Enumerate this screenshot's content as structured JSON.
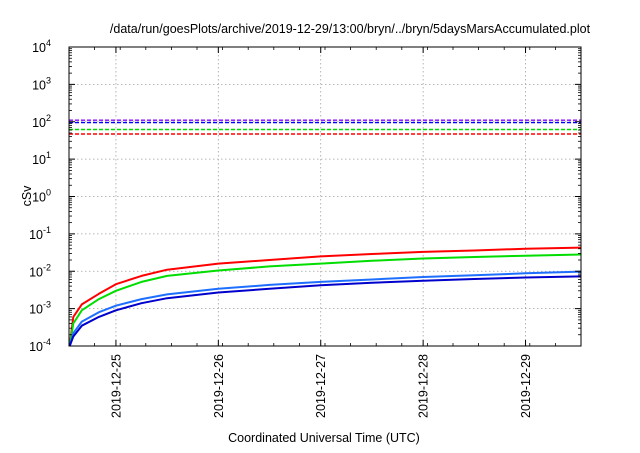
{
  "chart_data": {
    "type": "line",
    "title": "/data/run/goesPlots/archive/2019-12-29/13:00/bryn/../bryn/5daysMarsAccumulated.plot",
    "xlabel": "Coordinated Universal Time (UTC)",
    "ylabel": "cSv",
    "yscale": "log",
    "ylim": [
      0.0001,
      10000
    ],
    "y_ticks": [
      {
        "value": 0.0001,
        "base": "10",
        "exp": "-4"
      },
      {
        "value": 0.001,
        "base": "10",
        "exp": "-3"
      },
      {
        "value": 0.01,
        "base": "10",
        "exp": "-2"
      },
      {
        "value": 0.1,
        "base": "10",
        "exp": "-1"
      },
      {
        "value": 1,
        "base": "10",
        "exp": "0"
      },
      {
        "value": 10,
        "base": "10",
        "exp": "1"
      },
      {
        "value": 100,
        "base": "10",
        "exp": "2"
      },
      {
        "value": 1000,
        "base": "10",
        "exp": "3"
      },
      {
        "value": 10000,
        "base": "10",
        "exp": "4"
      }
    ],
    "xlim": [
      "2019-12-24 13:00",
      "2019-12-29 13:00"
    ],
    "x_ticks": [
      "2019-12-25",
      "2019-12-26",
      "2019-12-27",
      "2019-12-28",
      "2019-12-29"
    ],
    "grid": true,
    "thresholds": [
      {
        "color": "#8b00ff",
        "value": 110
      },
      {
        "color": "#0000ff",
        "value": 95
      },
      {
        "color": "#00dd00",
        "value": 62
      },
      {
        "color": "#ff0000",
        "value": 47
      }
    ],
    "series": [
      {
        "color": "#ff0000",
        "points": [
          [
            "2019-12-24 13:10",
            0.0001
          ],
          [
            "2019-12-24 14:00",
            0.0006
          ],
          [
            "2019-12-24 16:00",
            0.0013
          ],
          [
            "2019-12-24 20:00",
            0.0025
          ],
          [
            "2019-12-25 00:00",
            0.0045
          ],
          [
            "2019-12-25 06:00",
            0.0075
          ],
          [
            "2019-12-25 12:00",
            0.011
          ],
          [
            "2019-12-26 00:00",
            0.016
          ],
          [
            "2019-12-26 12:00",
            0.02
          ],
          [
            "2019-12-27 00:00",
            0.025
          ],
          [
            "2019-12-27 12:00",
            0.029
          ],
          [
            "2019-12-28 00:00",
            0.033
          ],
          [
            "2019-12-28 12:00",
            0.036
          ],
          [
            "2019-12-29 00:00",
            0.04
          ],
          [
            "2019-12-29 13:00",
            0.043
          ]
        ]
      },
      {
        "color": "#00dd00",
        "points": [
          [
            "2019-12-24 13:10",
            0.0001
          ],
          [
            "2019-12-24 14:00",
            0.0004
          ],
          [
            "2019-12-24 16:00",
            0.0009
          ],
          [
            "2019-12-24 20:00",
            0.0018
          ],
          [
            "2019-12-25 00:00",
            0.003
          ],
          [
            "2019-12-25 06:00",
            0.0052
          ],
          [
            "2019-12-25 12:00",
            0.0075
          ],
          [
            "2019-12-26 00:00",
            0.0105
          ],
          [
            "2019-12-26 12:00",
            0.0135
          ],
          [
            "2019-12-27 00:00",
            0.016
          ],
          [
            "2019-12-27 12:00",
            0.019
          ],
          [
            "2019-12-28 00:00",
            0.022
          ],
          [
            "2019-12-28 12:00",
            0.024
          ],
          [
            "2019-12-29 00:00",
            0.026
          ],
          [
            "2019-12-29 13:00",
            0.028
          ]
        ]
      },
      {
        "color": "#1e6fff",
        "points": [
          [
            "2019-12-24 13:10",
            0.0001
          ],
          [
            "2019-12-24 14:00",
            0.00022
          ],
          [
            "2019-12-24 16:00",
            0.00045
          ],
          [
            "2019-12-24 20:00",
            0.0008
          ],
          [
            "2019-12-25 00:00",
            0.0012
          ],
          [
            "2019-12-25 06:00",
            0.0018
          ],
          [
            "2019-12-25 12:00",
            0.0024
          ],
          [
            "2019-12-26 00:00",
            0.0034
          ],
          [
            "2019-12-26 12:00",
            0.0043
          ],
          [
            "2019-12-27 00:00",
            0.0052
          ],
          [
            "2019-12-27 12:00",
            0.006
          ],
          [
            "2019-12-28 00:00",
            0.007
          ],
          [
            "2019-12-28 12:00",
            0.0078
          ],
          [
            "2019-12-29 00:00",
            0.0088
          ],
          [
            "2019-12-29 13:00",
            0.0098
          ]
        ]
      },
      {
        "color": "#0000cc",
        "points": [
          [
            "2019-12-24 13:10",
            0.0001
          ],
          [
            "2019-12-24 14:00",
            0.00018
          ],
          [
            "2019-12-24 16:00",
            0.00035
          ],
          [
            "2019-12-24 20:00",
            0.0006
          ],
          [
            "2019-12-25 00:00",
            0.0009
          ],
          [
            "2019-12-25 06:00",
            0.0014
          ],
          [
            "2019-12-25 12:00",
            0.0019
          ],
          [
            "2019-12-26 00:00",
            0.0027
          ],
          [
            "2019-12-26 12:00",
            0.0034
          ],
          [
            "2019-12-27 00:00",
            0.0042
          ],
          [
            "2019-12-27 12:00",
            0.0049
          ],
          [
            "2019-12-28 00:00",
            0.0056
          ],
          [
            "2019-12-28 12:00",
            0.0062
          ],
          [
            "2019-12-29 00:00",
            0.0068
          ],
          [
            "2019-12-29 13:00",
            0.0073
          ]
        ]
      }
    ]
  }
}
